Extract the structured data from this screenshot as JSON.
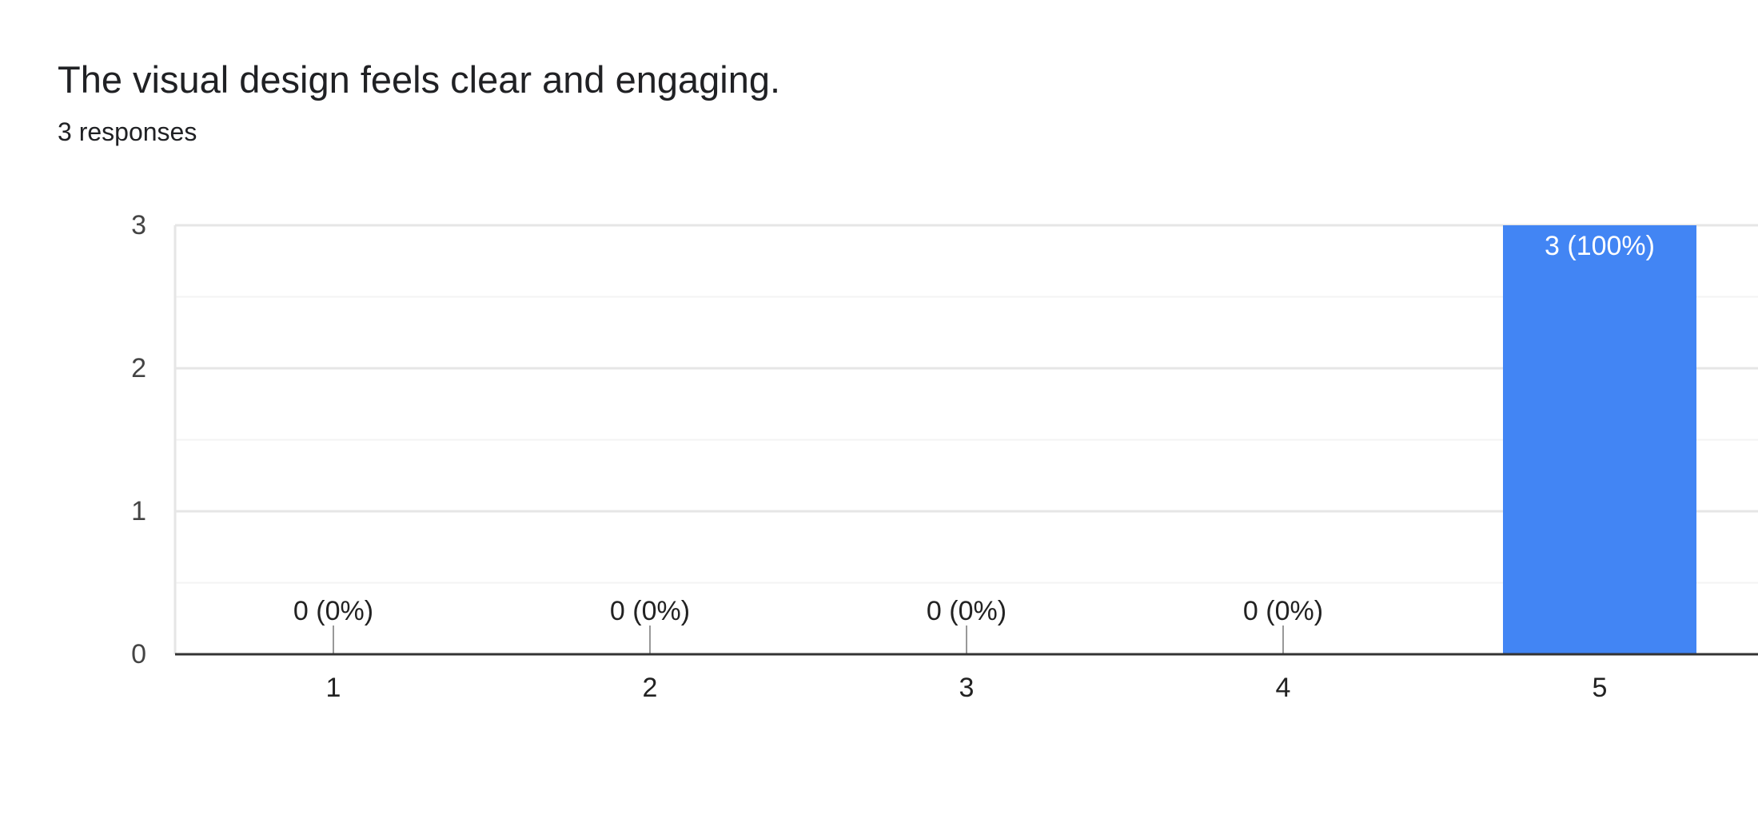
{
  "question": {
    "title": "The visual design feels clear and engaging.",
    "responses_text": "3 responses"
  },
  "colors": {
    "bar": "#4285f4",
    "grid_major": "#e6e6e6",
    "grid_minor": "#f3f3f3",
    "baseline": "#333333",
    "zero_tick": "#999999",
    "data_label_dark": "#222222",
    "data_label_light": "#ffffff"
  },
  "chart_data": {
    "type": "bar",
    "categories": [
      "1",
      "2",
      "3",
      "4",
      "5"
    ],
    "values": [
      0,
      0,
      0,
      0,
      3
    ],
    "data_labels": [
      "0 (0%)",
      "0 (0%)",
      "0 (0%)",
      "0 (0%)",
      "3 (100%)"
    ],
    "title": "The visual design feels clear and engaging.",
    "xlabel": "",
    "ylabel": "",
    "ylim": [
      0,
      3
    ],
    "yticks": [
      "0",
      "1",
      "2",
      "3"
    ],
    "grid": true,
    "legend": "none"
  }
}
